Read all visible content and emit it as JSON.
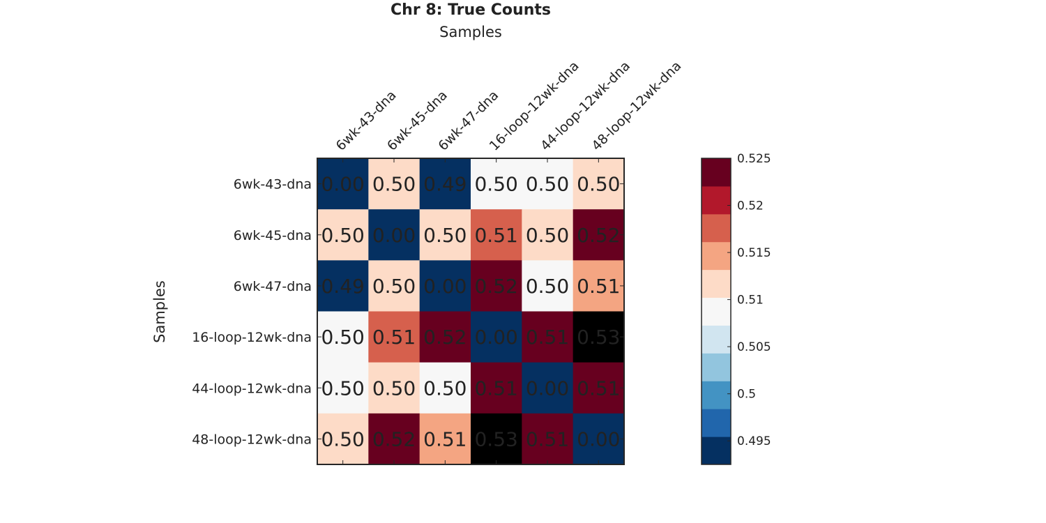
{
  "chart_data": {
    "type": "heatmap",
    "title": "Chr 8: True Counts",
    "xlabel": "Samples",
    "ylabel": "Samples",
    "xlabel_position": "top",
    "categories": [
      "6wk-43-dna",
      "6wk-45-dna",
      "6wk-47-dna",
      "16-loop-12wk-dna",
      "44-loop-12wk-dna",
      "48-loop-12wk-dna"
    ],
    "value_labels": [
      [
        "0.00",
        "0.50",
        "0.49",
        "0.50",
        "0.50",
        "0.50"
      ],
      [
        "0.50",
        "0.00",
        "0.50",
        "0.51",
        "0.50",
        "0.52"
      ],
      [
        "0.49",
        "0.50",
        "0.00",
        "0.52",
        "0.50",
        "0.51"
      ],
      [
        "0.50",
        "0.51",
        "0.52",
        "0.00",
        "0.51",
        "0.53"
      ],
      [
        "0.50",
        "0.50",
        "0.50",
        "0.51",
        "0.00",
        "0.51"
      ],
      [
        "0.50",
        "0.52",
        "0.51",
        "0.53",
        "0.51",
        "0.00"
      ]
    ],
    "color_levels": [
      [
        0,
        6,
        0,
        5,
        5,
        6
      ],
      [
        6,
        0,
        6,
        8,
        6,
        10
      ],
      [
        0,
        6,
        0,
        10,
        5,
        7
      ],
      [
        5,
        8,
        10,
        0,
        10,
        13
      ],
      [
        5,
        6,
        5,
        10,
        0,
        10
      ],
      [
        6,
        10,
        7,
        13,
        10,
        0
      ]
    ],
    "colorbar": {
      "range": [
        0.4925,
        0.525
      ],
      "ticks": [
        "0.495",
        "0.5",
        "0.505",
        "0.51",
        "0.515",
        "0.52",
        "0.525"
      ],
      "tick_values": [
        0.495,
        0.5,
        0.505,
        0.51,
        0.515,
        0.52,
        0.525
      ],
      "colors": [
        "#053061",
        "#2166ac",
        "#4393c3",
        "#92c5de",
        "#d1e5f0",
        "#f7f7f7",
        "#fddbc7",
        "#f4a582",
        "#d6604d",
        "#b2182b",
        "#67001f"
      ]
    },
    "grid": false,
    "legend": "colorbar-right"
  }
}
